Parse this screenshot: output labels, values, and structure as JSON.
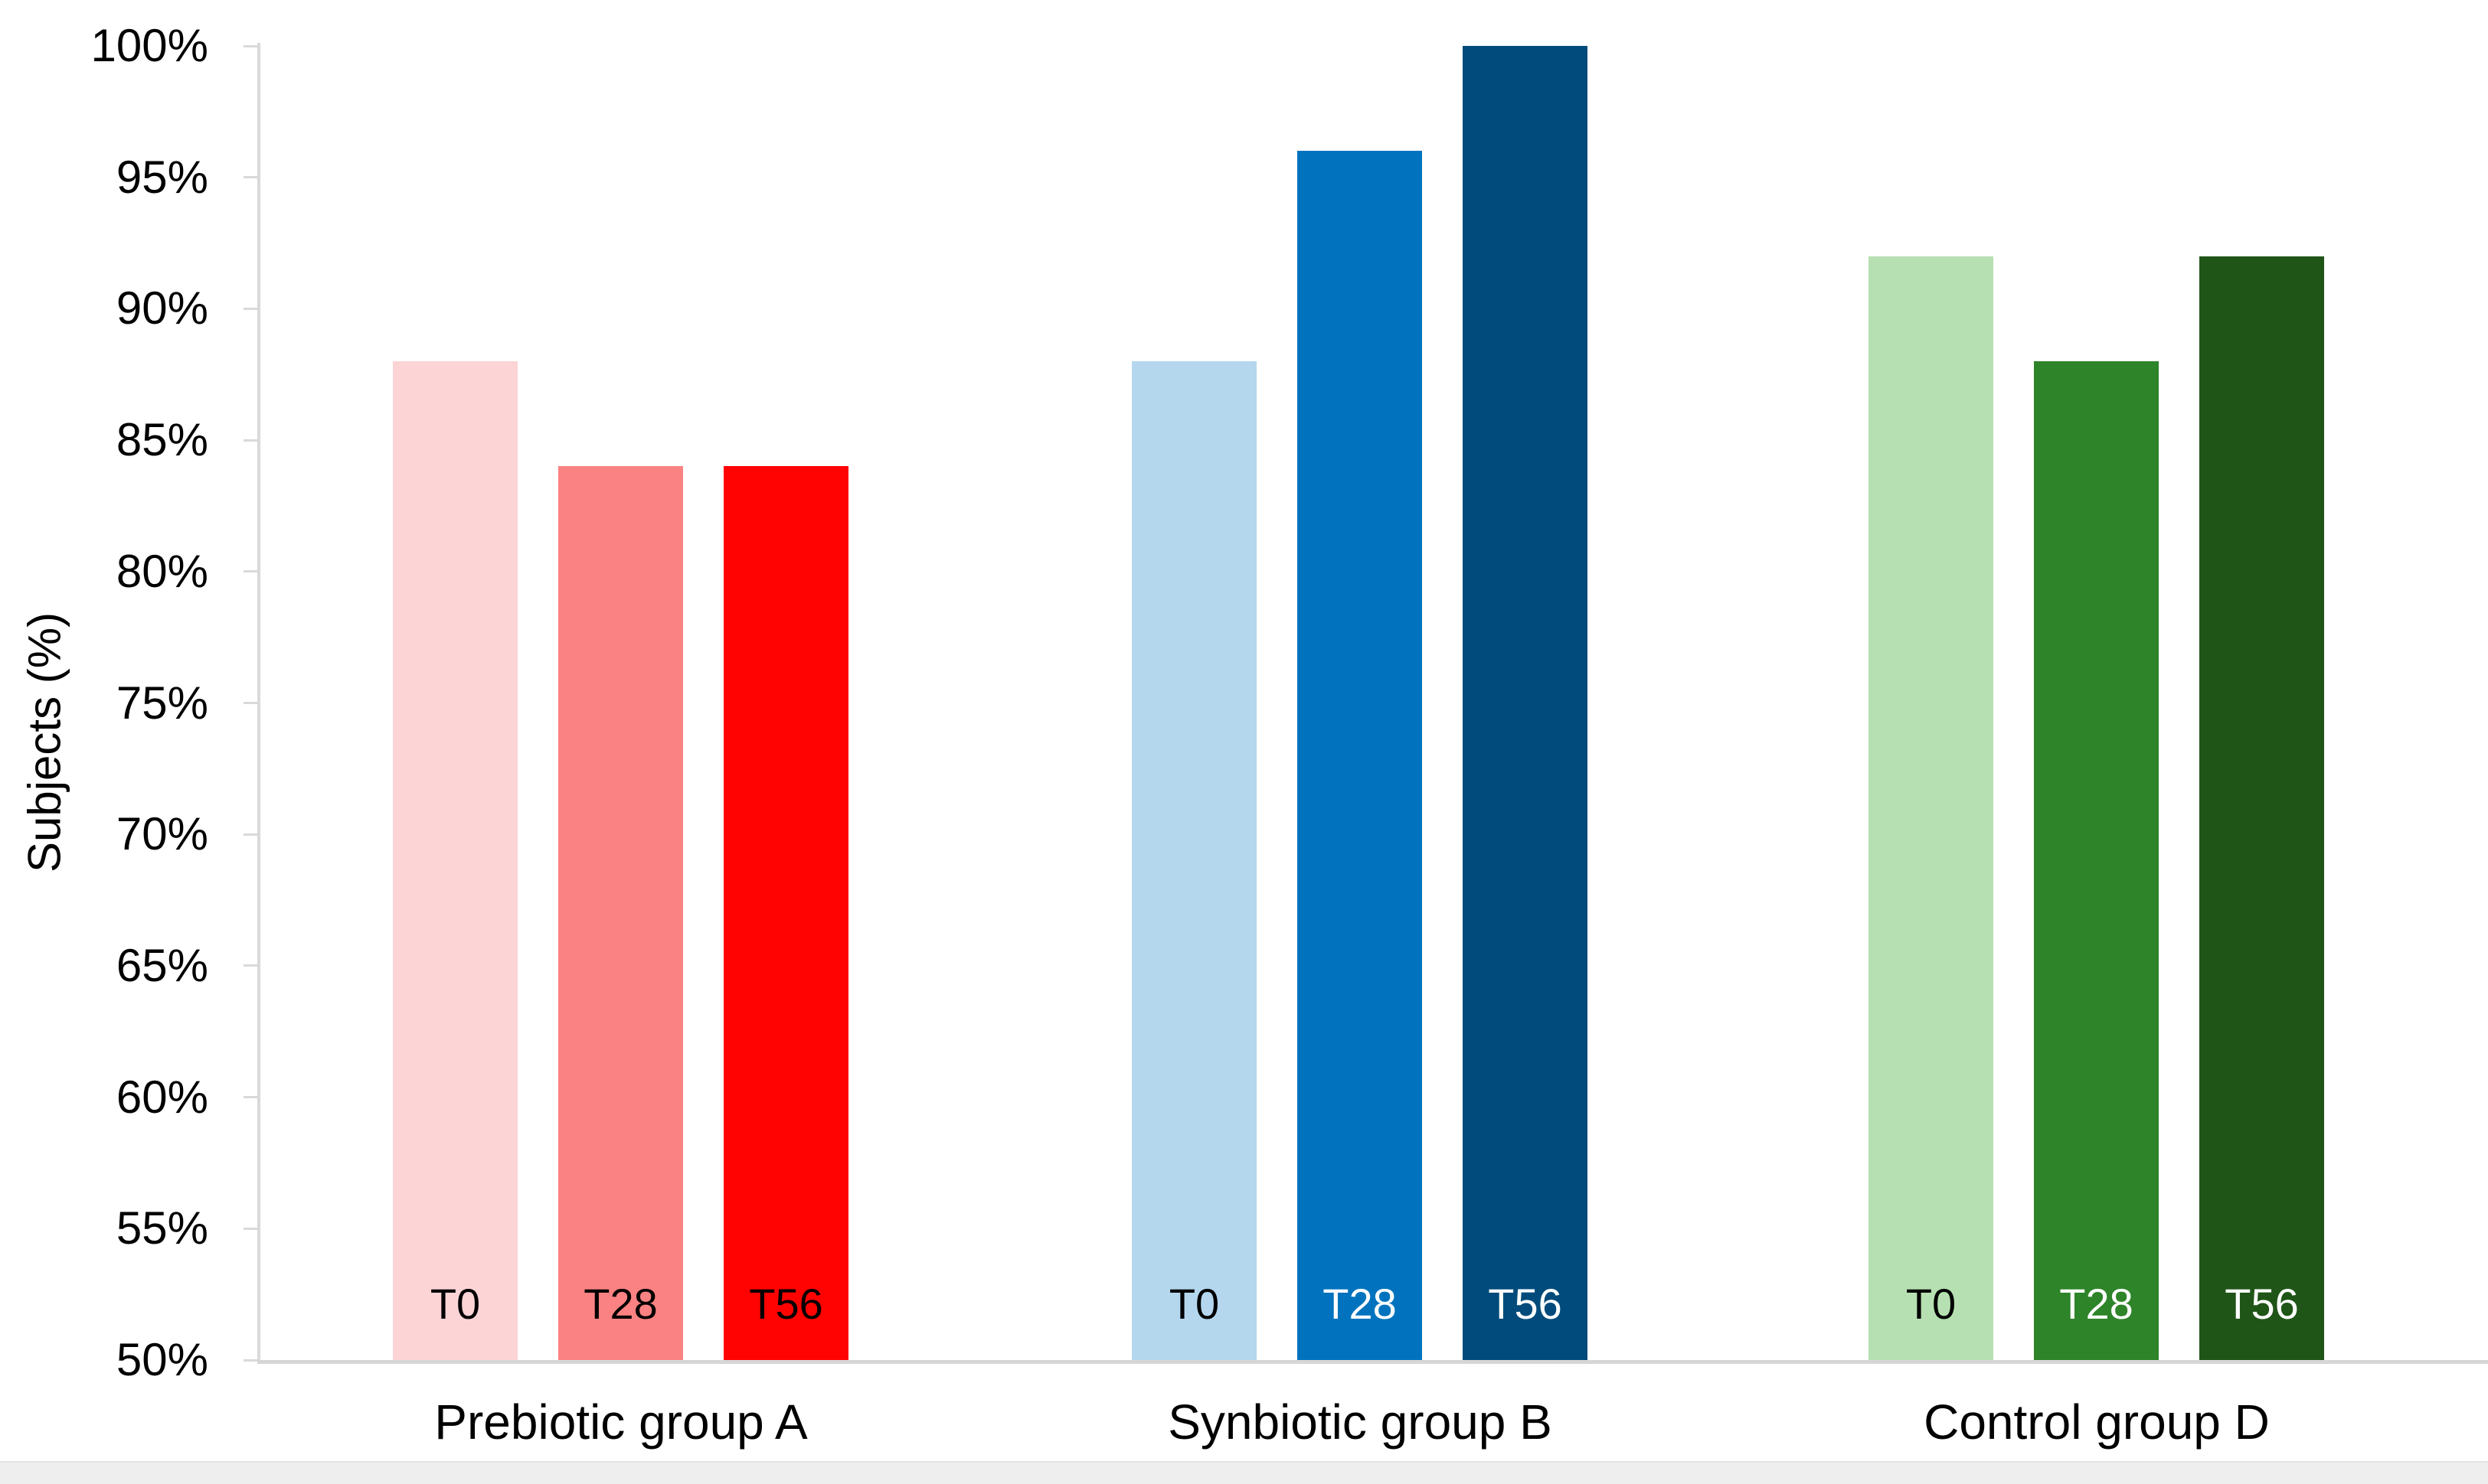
{
  "chart_data": {
    "type": "bar",
    "title": "",
    "xlabel": "",
    "ylabel": "Subjects (%)",
    "ylim": [
      50,
      100
    ],
    "ytick_step": 5,
    "ytick_labels": [
      "100%",
      "95%",
      "90%",
      "85%",
      "80%",
      "75%",
      "70%",
      "65%",
      "60%",
      "55%",
      "50%"
    ],
    "grid": false,
    "legend": "none",
    "axis_color": "#d9d9d9",
    "text_color": "#000000",
    "categories": [
      "Prebiotic group A",
      "Synbiotic group B",
      "Control group D"
    ],
    "groups": [
      {
        "label": "Prebiotic group A",
        "bars": [
          {
            "label": "T0",
            "value": 88,
            "color": "#fcd4d6",
            "label_color": "#000000"
          },
          {
            "label": "T28",
            "value": 84,
            "color": "#fb8282",
            "label_color": "#000000"
          },
          {
            "label": "T56",
            "value": 84,
            "color": "#ff0303",
            "label_color": "#000000"
          }
        ]
      },
      {
        "label": "Synbiotic group B",
        "bars": [
          {
            "label": "T0",
            "value": 88,
            "color": "#b4d7ee",
            "label_color": "#000000"
          },
          {
            "label": "T28",
            "value": 96,
            "color": "#0173be",
            "label_color": "#ffffff"
          },
          {
            "label": "T56",
            "value": 100,
            "color": "#004b7b",
            "label_color": "#ffffff"
          }
        ]
      },
      {
        "label": "Control group D",
        "bars": [
          {
            "label": "T0",
            "value": 92,
            "color": "#b7e0b2",
            "label_color": "#000000"
          },
          {
            "label": "T28",
            "value": 88,
            "color": "#2e8429",
            "label_color": "#ffffff"
          },
          {
            "label": "T56",
            "value": 92,
            "color": "#205518",
            "label_color": "#ffffff"
          }
        ]
      }
    ]
  }
}
